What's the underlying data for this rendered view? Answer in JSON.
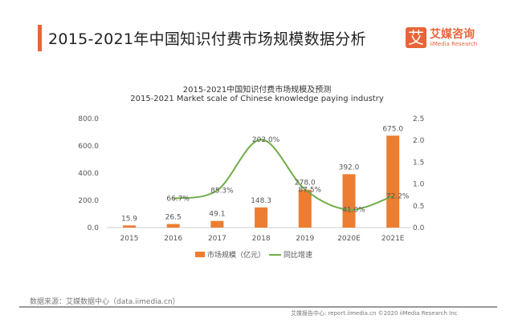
{
  "header": {
    "title": "2015-2021年中国知识付费市场规模数据分析",
    "logo_cn": "艾媒咨询",
    "logo_en": "iiMedia Research",
    "logo_mark": "艾"
  },
  "chart_data": {
    "type": "bar",
    "title": "2015-2021中国知识付费市场规模及预测",
    "subtitle": "2015-2021 Market scale of Chinese knowledge paying industry",
    "categories": [
      "2015",
      "2016",
      "2017",
      "2018",
      "2019",
      "2020E",
      "2021E"
    ],
    "series": [
      {
        "name": "市场规模（亿元）",
        "type": "bar",
        "axis": "left",
        "values": [
          15.9,
          26.5,
          49.1,
          148.3,
          278.0,
          392.0,
          675.0
        ],
        "labels": [
          "15.9",
          "26.5",
          "49.1",
          "148.3",
          "278.0",
          "392.0",
          "675.0"
        ],
        "color": "#ed7d31"
      },
      {
        "name": "同比增速",
        "type": "line",
        "axis": "right",
        "values": [
          null,
          0.667,
          0.853,
          2.02,
          0.875,
          0.41,
          0.722
        ],
        "labels": [
          "",
          "66.7%",
          "85.3%",
          "202.0%",
          "87.5%",
          "41.0%",
          "72.2%"
        ],
        "color": "#70ad47"
      }
    ],
    "left_axis": {
      "ylim": [
        0,
        800
      ],
      "ticks": [
        "0.0",
        "200.0",
        "400.0",
        "600.0",
        "800.0"
      ]
    },
    "right_axis": {
      "ylim": [
        0,
        2.5
      ],
      "ticks": [
        "0.0",
        "0.5",
        "1.0",
        "1.5",
        "2.0",
        "2.5"
      ]
    },
    "legend": "bottom"
  },
  "footer": {
    "source": "数据来源：艾媒数据中心（data.iimedia.cn）",
    "copyright": "艾媒报告中心: report.iimedia.cn ©2020 iiMedia Research Inc"
  }
}
